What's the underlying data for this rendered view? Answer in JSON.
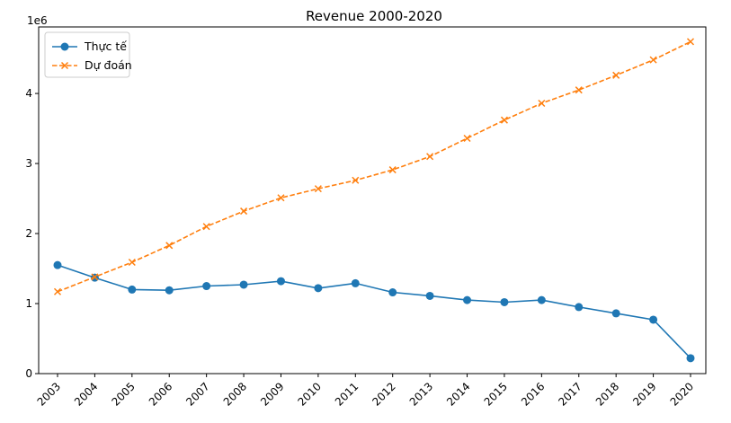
{
  "chart_data": {
    "type": "line",
    "title": "Revenue 2000-2020",
    "xlabel": "",
    "ylabel": "",
    "y_offset_label": "1e6",
    "categories": [
      "2003",
      "2004",
      "2005",
      "2006",
      "2007",
      "2008",
      "2009",
      "2010",
      "2011",
      "2012",
      "2013",
      "2014",
      "2015",
      "2016",
      "2017",
      "2018",
      "2019",
      "2020"
    ],
    "y_ticks": [
      0,
      1,
      2,
      3,
      4
    ],
    "ylim": [
      0,
      4.95
    ],
    "grid": false,
    "legend_position": "top-left",
    "series": [
      {
        "name": "Thực tế",
        "color": "#1f77b4",
        "style": "solid",
        "marker": "circle",
        "values": [
          1.55,
          1.37,
          1.2,
          1.19,
          1.25,
          1.27,
          1.32,
          1.22,
          1.29,
          1.16,
          1.11,
          1.05,
          1.02,
          1.05,
          0.95,
          0.86,
          0.77,
          0.22
        ]
      },
      {
        "name": "Dự đoán",
        "color": "#ff7f0e",
        "style": "dashed",
        "marker": "x",
        "values": [
          1.17,
          1.38,
          1.59,
          1.83,
          2.1,
          2.32,
          2.51,
          2.64,
          2.76,
          2.91,
          3.1,
          3.36,
          3.62,
          3.86,
          4.05,
          4.26,
          4.48,
          4.74
        ]
      }
    ]
  }
}
